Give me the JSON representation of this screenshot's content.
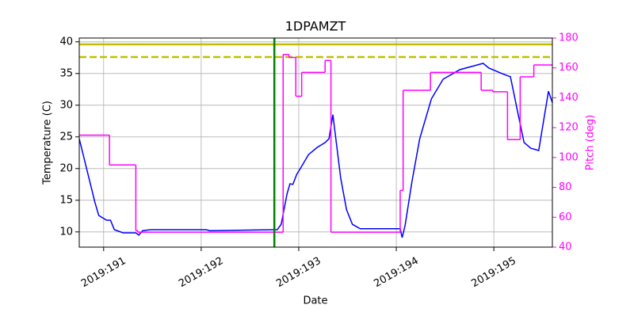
{
  "chart_data": {
    "type": "line",
    "title": "1DPAMZT",
    "x_label": "Date",
    "y_label": "Temperature (C)",
    "y2_label": "Pitch (deg)",
    "y2_color": "#ff00ff",
    "xlim": [
      190.75,
      195.6
    ],
    "xticks": [
      {
        "value": 191,
        "label": "2019:191"
      },
      {
        "value": 192,
        "label": "2019:192"
      },
      {
        "value": 193,
        "label": "2019:193"
      },
      {
        "value": 194,
        "label": "2019:194"
      },
      {
        "value": 195,
        "label": "2019:195"
      }
    ],
    "ylim": [
      7.6,
      40.6
    ],
    "yticks": [
      10,
      15,
      20,
      25,
      30,
      35,
      40
    ],
    "y2lim": [
      40,
      180
    ],
    "y2ticks": [
      40,
      60,
      80,
      100,
      120,
      140,
      160,
      180
    ],
    "grid": true,
    "hlines": [
      {
        "value": 39.6,
        "color": "#bfbf00",
        "style": "solid"
      },
      {
        "value": 37.6,
        "color": "#bfbf00",
        "style": "dashed"
      }
    ],
    "vlines": [
      {
        "value": 192.75,
        "color": "#008000"
      }
    ],
    "series": [
      {
        "color": "#0000ff",
        "x": [
          190.75,
          190.83,
          190.91,
          190.95,
          191.03,
          191.07,
          191.11,
          191.2,
          191.33,
          191.36,
          191.4,
          191.48,
          192.05,
          192.09,
          192.74,
          192.78,
          192.82,
          192.88,
          192.91,
          192.94,
          192.98,
          193.02,
          193.1,
          193.19,
          193.27,
          193.31,
          193.35,
          193.39,
          193.43,
          193.49,
          193.55,
          193.63,
          194.04,
          194.06,
          194.09,
          194.16,
          194.24,
          194.36,
          194.48,
          194.65,
          194.89,
          194.95,
          195.13,
          195.17,
          195.25,
          195.31,
          195.38,
          195.46,
          195.5,
          195.56,
          195.6
        ],
        "values": [
          24.7,
          19.7,
          14.7,
          12.6,
          11.85,
          11.85,
          10.35,
          9.85,
          9.85,
          9.5,
          10.2,
          10.35,
          10.35,
          10.2,
          10.35,
          10.35,
          11.2,
          16,
          17.6,
          17.5,
          19.1,
          20.1,
          22.2,
          23.35,
          24.1,
          24.7,
          28.5,
          23.5,
          18.5,
          13.5,
          11.2,
          10.5,
          10.5,
          9.1,
          11,
          17.9,
          24.7,
          31,
          34.1,
          35.6,
          36.6,
          35.85,
          34.7,
          34.5,
          28.5,
          24.1,
          23.2,
          22.85,
          26.6,
          32.2,
          30.4
        ]
      },
      {
        "color": "#ff00ff",
        "axis": "y2",
        "drawstyle": "steps-post",
        "x": [
          190.75,
          191.06,
          191.33,
          191.35,
          192.84,
          192.9,
          192.97,
          193.03,
          193.27,
          193.33,
          194.04,
          194.07,
          194.35,
          194.87,
          194.99,
          195.14,
          195.27,
          195.41
        ],
        "values": [
          115,
          95,
          51,
          50,
          169,
          167,
          141,
          157,
          165,
          50,
          78,
          145,
          157,
          145,
          144,
          112,
          154,
          162
        ]
      }
    ]
  }
}
